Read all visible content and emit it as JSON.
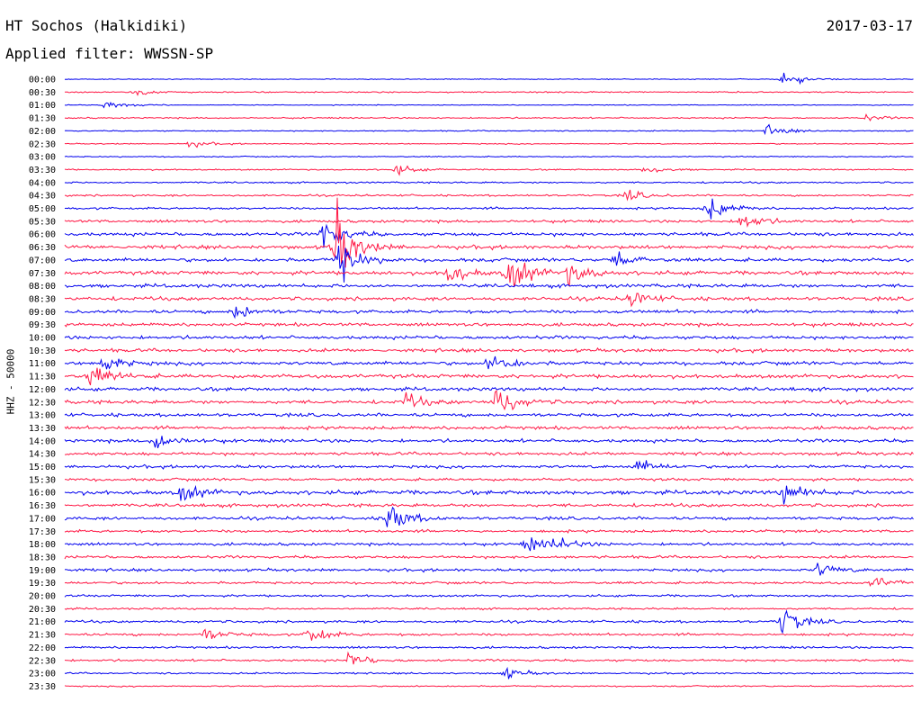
{
  "header": {
    "station": "HT Sochos (Halkidiki)",
    "date": "2017-03-17",
    "filter_text": "Applied filter: WWSSN-SP"
  },
  "chart_data": {
    "type": "line",
    "title": "HT Sochos (Halkidiki)",
    "ylabel": "HHZ - 50000",
    "xlabel": "",
    "trace_colors": [
      "#0000ee",
      "#ff1744"
    ],
    "grid": false,
    "y_ticks": [
      "00:00",
      "00:30",
      "01:00",
      "01:30",
      "02:00",
      "02:30",
      "03:00",
      "03:30",
      "04:00",
      "04:30",
      "05:00",
      "05:30",
      "06:00",
      "06:30",
      "07:00",
      "07:30",
      "08:00",
      "08:30",
      "09:00",
      "09:30",
      "10:00",
      "10:30",
      "11:00",
      "11:30",
      "12:00",
      "12:30",
      "13:00",
      "13:30",
      "14:00",
      "14:30",
      "15:00",
      "15:30",
      "16:00",
      "16:30",
      "17:00",
      "17:30",
      "18:00",
      "18:30",
      "19:00",
      "19:30",
      "20:00",
      "20:30",
      "21:00",
      "21:30",
      "22:00",
      "22:30",
      "23:00",
      "23:30"
    ],
    "noise_levels": [
      0.3,
      0.5,
      0.3,
      0.5,
      0.4,
      0.4,
      0.4,
      0.5,
      0.6,
      0.7,
      0.8,
      1.0,
      1.2,
      1.3,
      1.3,
      1.4,
      1.3,
      1.3,
      1.2,
      1.2,
      1.2,
      1.2,
      1.3,
      1.4,
      1.3,
      1.3,
      1.2,
      1.2,
      1.2,
      1.1,
      1.1,
      1.0,
      1.5,
      1.2,
      1.1,
      1.0,
      1.0,
      1.0,
      1.0,
      0.9,
      0.8,
      0.7,
      0.9,
      0.9,
      0.8,
      0.8,
      0.6,
      0.5
    ],
    "events": [
      {
        "row": 0,
        "minute": 25.4,
        "amp": 7
      },
      {
        "row": 1,
        "minute": 2.5,
        "amp": 3
      },
      {
        "row": 2,
        "minute": 1.4,
        "amp": 4
      },
      {
        "row": 3,
        "minute": 28.2,
        "amp": 3
      },
      {
        "row": 4,
        "minute": 24.8,
        "amp": 5
      },
      {
        "row": 5,
        "minute": 4.4,
        "amp": 3
      },
      {
        "row": 7,
        "minute": 11.7,
        "amp": 4
      },
      {
        "row": 7,
        "minute": 20.5,
        "amp": 4
      },
      {
        "row": 9,
        "minute": 19.8,
        "amp": 5
      },
      {
        "row": 10,
        "minute": 22.7,
        "amp": 12
      },
      {
        "row": 11,
        "minute": 23.9,
        "amp": 9
      },
      {
        "row": 12,
        "minute": 9.1,
        "amp": 14
      },
      {
        "row": 13,
        "minute": 9.5,
        "amp": 36
      },
      {
        "row": 14,
        "minute": 9.6,
        "amp": 20
      },
      {
        "row": 14,
        "minute": 19.4,
        "amp": 8
      },
      {
        "row": 15,
        "minute": 13.5,
        "amp": 9
      },
      {
        "row": 15,
        "minute": 15.6,
        "amp": 10
      },
      {
        "row": 15,
        "minute": 15.8,
        "amp": 9
      },
      {
        "row": 15,
        "minute": 17.7,
        "amp": 11
      },
      {
        "row": 17,
        "minute": 20.0,
        "amp": 8
      },
      {
        "row": 18,
        "minute": 6.0,
        "amp": 7
      },
      {
        "row": 22,
        "minute": 1.3,
        "amp": 9
      },
      {
        "row": 22,
        "minute": 15.0,
        "amp": 11
      },
      {
        "row": 23,
        "minute": 0.9,
        "amp": 10
      },
      {
        "row": 25,
        "minute": 12.0,
        "amp": 7
      },
      {
        "row": 25,
        "minute": 15.2,
        "amp": 14
      },
      {
        "row": 28,
        "minute": 3.2,
        "amp": 9
      },
      {
        "row": 30,
        "minute": 20.2,
        "amp": 6
      },
      {
        "row": 32,
        "minute": 4.1,
        "amp": 9
      },
      {
        "row": 32,
        "minute": 25.4,
        "amp": 10
      },
      {
        "row": 34,
        "minute": 11.4,
        "amp": 14
      },
      {
        "row": 36,
        "minute": 16.3,
        "amp": 7
      },
      {
        "row": 36,
        "minute": 17.3,
        "amp": 6
      },
      {
        "row": 38,
        "minute": 26.6,
        "amp": 6
      },
      {
        "row": 39,
        "minute": 28.5,
        "amp": 6
      },
      {
        "row": 42,
        "minute": 25.3,
        "amp": 13
      },
      {
        "row": 43,
        "minute": 4.9,
        "amp": 6
      },
      {
        "row": 43,
        "minute": 8.6,
        "amp": 8
      },
      {
        "row": 45,
        "minute": 10.0,
        "amp": 7
      },
      {
        "row": 46,
        "minute": 15.5,
        "amp": 5
      }
    ]
  }
}
